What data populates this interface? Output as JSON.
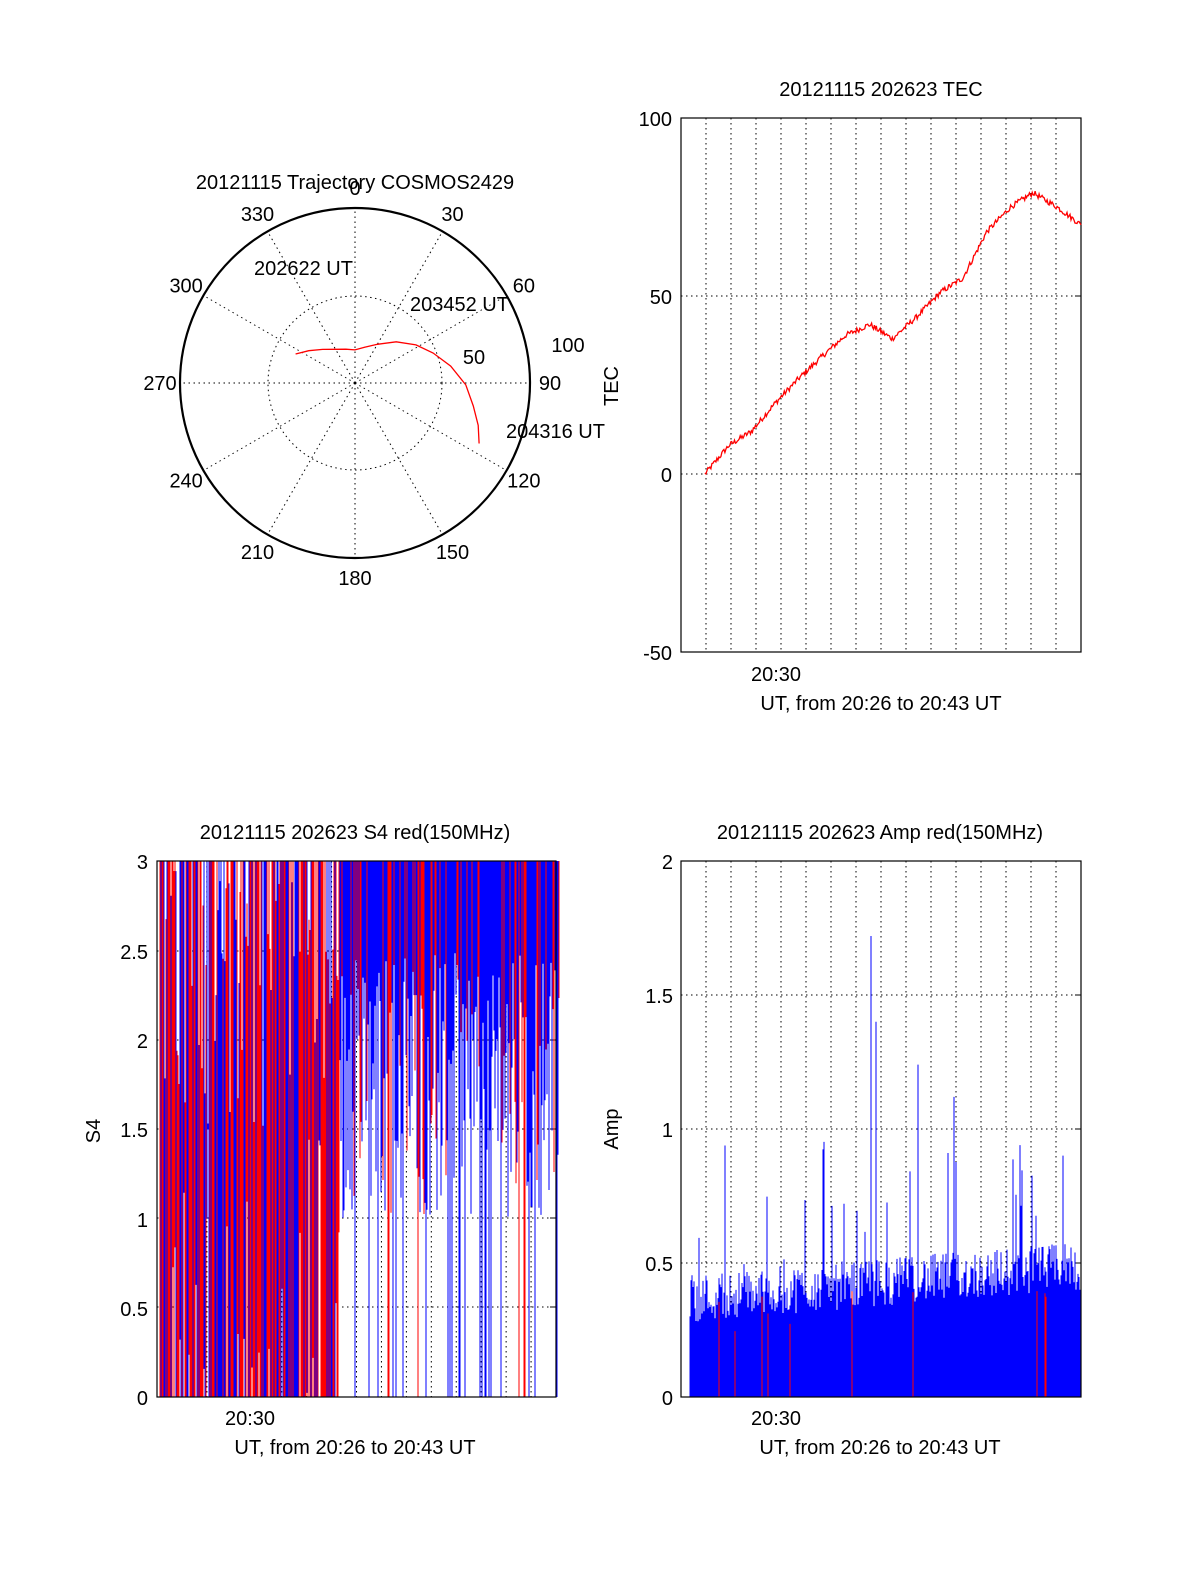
{
  "chart_data": [
    {
      "type": "polar",
      "title": "20121115 Trajectory COSMOS2429",
      "angle_labels": [
        "0",
        "30",
        "60",
        "90",
        "120",
        "150",
        "180",
        "210",
        "240",
        "270",
        "300",
        "330"
      ],
      "radius_labels": [
        "50",
        "100"
      ],
      "radius_range": [
        0,
        100
      ],
      "series": [
        {
          "points": [
            {
              "az": 296,
              "el": 11
            },
            {
              "az": 305,
              "el": 16
            },
            {
              "az": 316,
              "el": 21
            },
            {
              "az": 330,
              "el": 25
            },
            {
              "az": 345,
              "el": 27
            },
            {
              "az": 0,
              "el": 28
            },
            {
              "az": 15,
              "el": 26
            },
            {
              "az": 30,
              "el": 22
            },
            {
              "az": 45,
              "el": 15
            },
            {
              "az": 58,
              "el": 8
            },
            {
              "az": 69,
              "el": 2
            },
            {
              "az": 80,
              "el": -5
            },
            {
              "az": 91,
              "el": -12
            },
            {
              "az": 101,
              "el": -17
            },
            {
              "az": 109,
              "el": -22
            },
            {
              "az": 116,
              "el": -26
            }
          ]
        }
      ],
      "annotations": [
        "202622 UT",
        "203452 UT",
        "204316 UT"
      ],
      "side_label": "TEC",
      "color": "#ff0000"
    },
    {
      "type": "line",
      "title": "20121115 202623 TEC",
      "ylabel": "TEC",
      "xlabel": "UT, from 20:26 to 20:43 UT",
      "x_tick_label": "20:30",
      "yticks": [
        "100",
        "50",
        "0",
        "-50"
      ],
      "ylim": [
        -50,
        100
      ],
      "xlim": [
        20.433,
        20.717
      ],
      "series": [
        {
          "color": "#ff0000",
          "x": [
            20.45,
            20.467,
            20.483,
            20.5,
            20.517,
            20.533,
            20.55,
            20.567,
            20.583,
            20.6,
            20.617,
            20.633,
            20.65,
            20.667,
            20.683,
            20.7,
            20.717
          ],
          "y": [
            0,
            8,
            12,
            20,
            27,
            33,
            39,
            42,
            38,
            44,
            51,
            55,
            68,
            75,
            79,
            75,
            70
          ]
        }
      ]
    },
    {
      "type": "line",
      "title": "20121115 202623 S4 red(150MHz)",
      "ylabel": "S4",
      "xlabel": "UT, from 20:26 to 20:43 UT",
      "x_tick_label": "20:30",
      "yticks": [
        "3",
        "2.5",
        "2",
        "1.5",
        "1",
        "0.5",
        "0"
      ],
      "ylim": [
        0,
        3
      ],
      "xlim": [
        20.433,
        20.717
      ],
      "series": [
        {
          "color": "#0000ff",
          "x": [
            20.45,
            20.5,
            20.55,
            20.6,
            20.65,
            20.7
          ],
          "y": [
            2.5,
            2.2,
            1.8,
            1.3,
            1.9,
            1.7
          ]
        },
        {
          "color": "#ff0000",
          "x": [
            20.45,
            20.5,
            20.55,
            20.6,
            20.65,
            20.7
          ],
          "y": [
            3.0,
            2.0,
            1.5,
            1.2,
            2.0,
            1.6
          ]
        }
      ]
    },
    {
      "type": "line",
      "title": "20121115 202623 Amp red(150MHz)",
      "ylabel": "Amp",
      "xlabel": "UT, from 20:26 to 20:43 UT",
      "x_tick_label": "20:30",
      "yticks": [
        "2",
        "1.5",
        "1",
        "0.5",
        "0"
      ],
      "ylim": [
        0,
        2
      ],
      "xlim": [
        20.433,
        20.717
      ],
      "series": [
        {
          "color": "#0000ff",
          "x": [
            20.45,
            20.5,
            20.55,
            20.583,
            20.6,
            20.65,
            20.7
          ],
          "y": [
            0.4,
            0.6,
            0.8,
            1.7,
            0.8,
            1.0,
            0.6
          ]
        },
        {
          "color": "#ff0000",
          "x": [
            20.45,
            20.5,
            20.55,
            20.6,
            20.65,
            20.7
          ],
          "y": [
            0.3,
            0.3,
            0.3,
            0.3,
            0.3,
            0.4
          ]
        }
      ]
    }
  ]
}
